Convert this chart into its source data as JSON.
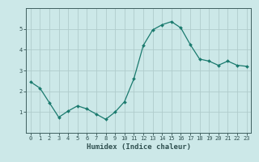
{
  "x": [
    0,
    1,
    2,
    3,
    4,
    5,
    6,
    7,
    8,
    9,
    10,
    11,
    12,
    13,
    14,
    15,
    16,
    17,
    18,
    19,
    20,
    21,
    22,
    23
  ],
  "y": [
    2.45,
    2.15,
    1.45,
    0.75,
    1.05,
    1.3,
    1.15,
    0.9,
    0.65,
    1.0,
    1.5,
    2.6,
    4.2,
    4.95,
    5.2,
    5.35,
    5.05,
    4.25,
    3.55,
    3.45,
    3.25,
    3.45,
    3.25,
    3.2
  ],
  "line_color": "#1a7a6e",
  "marker": "D",
  "marker_size": 2.0,
  "bg_color": "#cce8e8",
  "grid_color": "#b0cccc",
  "xlabel": "Humidex (Indice chaleur)",
  "ylim": [
    0,
    6
  ],
  "xlim": [
    -0.5,
    23.5
  ],
  "yticks": [
    1,
    2,
    3,
    4,
    5
  ],
  "xticks": [
    0,
    1,
    2,
    3,
    4,
    5,
    6,
    7,
    8,
    9,
    10,
    11,
    12,
    13,
    14,
    15,
    16,
    17,
    18,
    19,
    20,
    21,
    22,
    23
  ],
  "spine_color": "#406060",
  "text_color": "#305050",
  "label_fontsize": 6.5,
  "tick_fontsize": 5.0
}
